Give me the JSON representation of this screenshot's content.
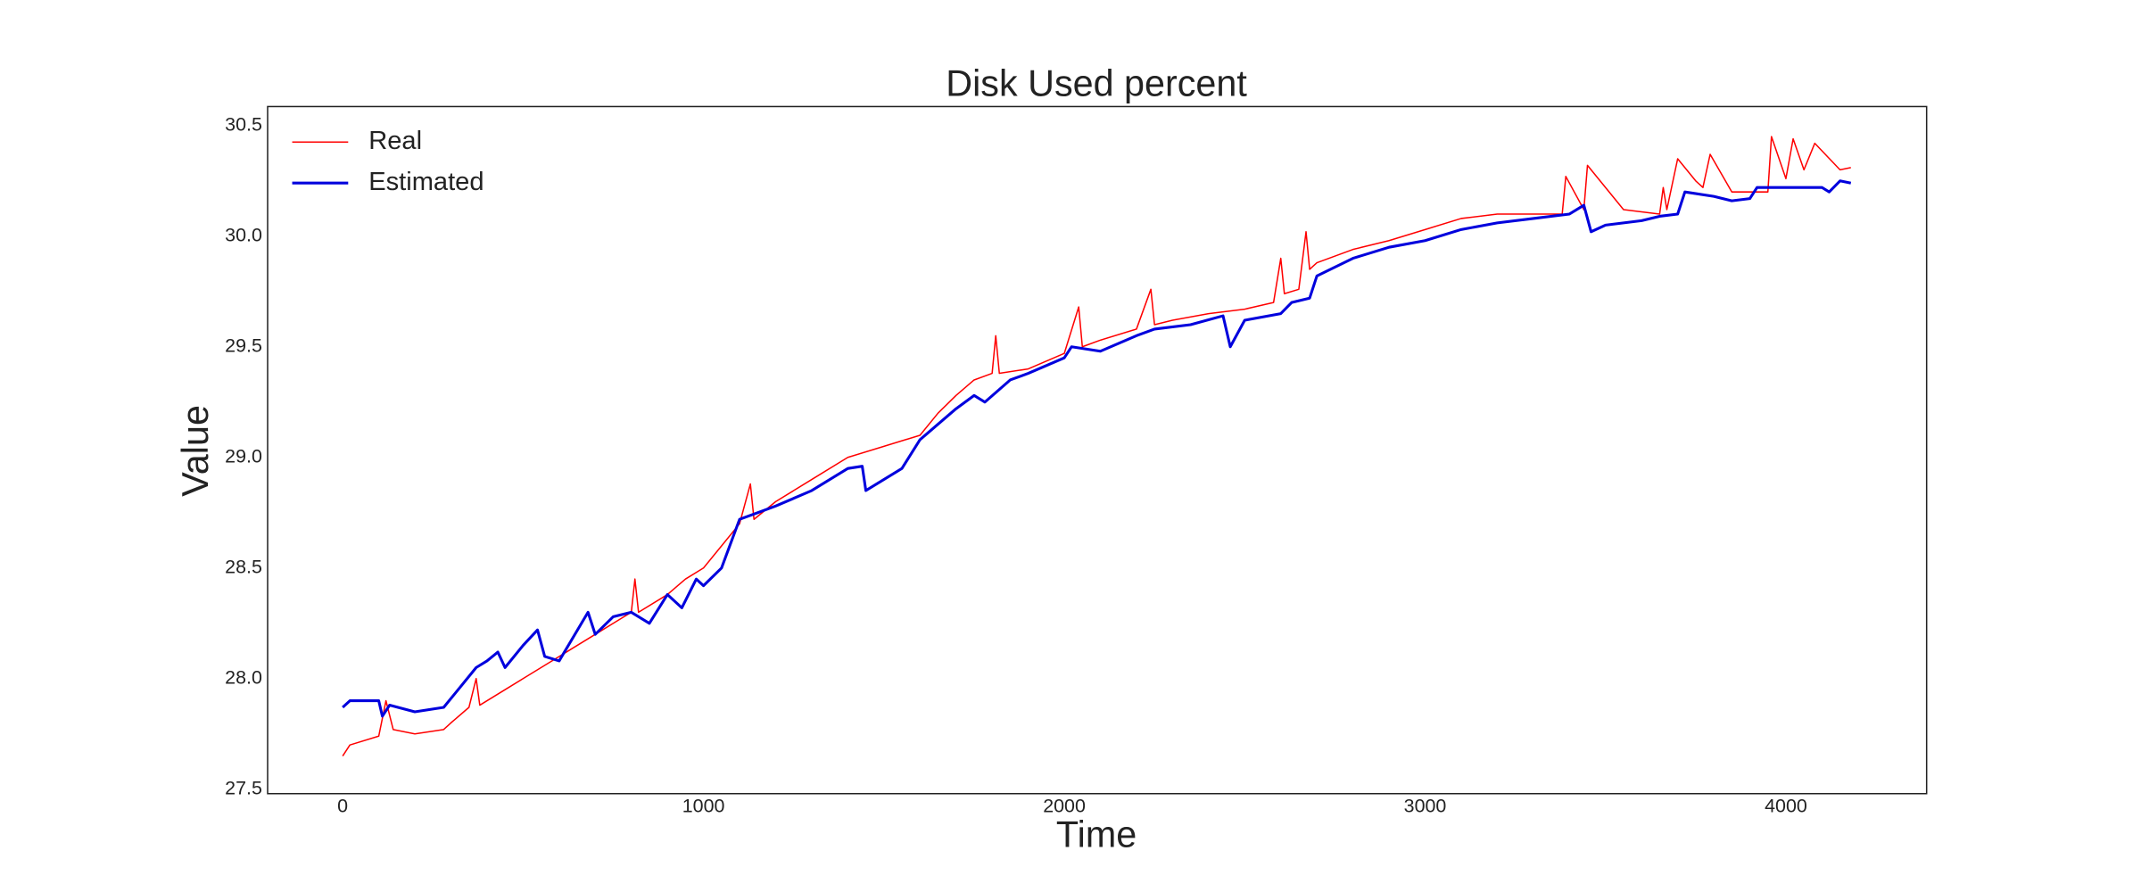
{
  "chart_data": {
    "type": "line",
    "title": "Disk Used percent",
    "x_label": "Time",
    "y_label": "Value",
    "legend": "upper left",
    "grid": false,
    "xlim": [
      -208,
      4390
    ],
    "ylim": [
      27.48,
      30.586
    ],
    "xticks": [
      0,
      1000,
      2000,
      3000,
      4000
    ],
    "yticks": [
      27.5,
      {
        "value": 28,
        "label": "28.0"
      },
      28.5,
      {
        "value": 29,
        "label": "29.0"
      },
      29.5,
      {
        "value": 30,
        "label": "30.0"
      },
      30.5
    ],
    "series": [
      {
        "name": "Real",
        "color": "#ff0000",
        "width": 1,
        "x": [
          0,
          20,
          100,
          120,
          140,
          200,
          280,
          300,
          350,
          370,
          380,
          450,
          500,
          550,
          600,
          650,
          700,
          750,
          800,
          810,
          820,
          900,
          950,
          1000,
          1050,
          1100,
          1130,
          1140,
          1200,
          1300,
          1400,
          1500,
          1600,
          1650,
          1700,
          1750,
          1800,
          1810,
          1820,
          1900,
          2000,
          2040,
          2050,
          2100,
          2200,
          2240,
          2250,
          2300,
          2400,
          2500,
          2580,
          2600,
          2610,
          2650,
          2670,
          2680,
          2700,
          2800,
          2900,
          3000,
          3100,
          3200,
          3300,
          3380,
          3390,
          3440,
          3450,
          3550,
          3650,
          3660,
          3670,
          3700,
          3750,
          3770,
          3790,
          3850,
          3950,
          3960,
          4000,
          4020,
          4050,
          4080,
          4150,
          4180
        ],
        "values": [
          27.65,
          27.7,
          27.74,
          27.9,
          27.77,
          27.75,
          27.77,
          27.8,
          27.87,
          28.0,
          27.88,
          27.95,
          28.0,
          28.05,
          28.1,
          28.15,
          28.2,
          28.25,
          28.3,
          28.45,
          28.3,
          28.38,
          28.45,
          28.5,
          28.6,
          28.7,
          28.88,
          28.72,
          28.8,
          28.9,
          29.0,
          29.05,
          29.1,
          29.2,
          29.28,
          29.35,
          29.38,
          29.55,
          29.38,
          29.4,
          29.47,
          29.68,
          29.5,
          29.53,
          29.58,
          29.76,
          29.6,
          29.62,
          29.65,
          29.67,
          29.7,
          29.9,
          29.74,
          29.76,
          30.02,
          29.85,
          29.88,
          29.94,
          29.98,
          30.03,
          30.08,
          30.1,
          30.1,
          30.1,
          30.27,
          30.12,
          30.32,
          30.12,
          30.1,
          30.22,
          30.12,
          30.35,
          30.25,
          30.22,
          30.37,
          30.2,
          30.2,
          30.45,
          30.26,
          30.44,
          30.3,
          30.42,
          30.3,
          30.31
        ]
      },
      {
        "name": "Estimated",
        "color": "#0000dd",
        "width": 2,
        "x": [
          0,
          20,
          100,
          110,
          130,
          200,
          280,
          320,
          370,
          400,
          430,
          450,
          500,
          540,
          560,
          600,
          680,
          700,
          750,
          800,
          850,
          900,
          940,
          980,
          1000,
          1050,
          1100,
          1150,
          1200,
          1300,
          1400,
          1440,
          1450,
          1500,
          1550,
          1600,
          1650,
          1700,
          1750,
          1780,
          1850,
          1900,
          2000,
          2020,
          2100,
          2200,
          2250,
          2350,
          2440,
          2460,
          2500,
          2600,
          2630,
          2680,
          2700,
          2800,
          2900,
          3000,
          3100,
          3200,
          3300,
          3400,
          3440,
          3460,
          3500,
          3600,
          3650,
          3700,
          3720,
          3800,
          3850,
          3900,
          3920,
          4000,
          4100,
          4120,
          4150,
          4180
        ],
        "values": [
          27.87,
          27.9,
          27.9,
          27.83,
          27.88,
          27.85,
          27.87,
          27.95,
          28.05,
          28.08,
          28.12,
          28.05,
          28.15,
          28.22,
          28.1,
          28.08,
          28.3,
          28.2,
          28.28,
          28.3,
          28.25,
          28.38,
          28.32,
          28.45,
          28.42,
          28.5,
          28.72,
          28.75,
          28.78,
          28.85,
          28.95,
          28.96,
          28.85,
          28.9,
          28.95,
          29.08,
          29.15,
          29.22,
          29.28,
          29.25,
          29.35,
          29.38,
          29.45,
          29.5,
          29.48,
          29.55,
          29.58,
          29.6,
          29.64,
          29.5,
          29.62,
          29.65,
          29.7,
          29.72,
          29.82,
          29.9,
          29.95,
          29.98,
          30.03,
          30.06,
          30.08,
          30.1,
          30.14,
          30.02,
          30.05,
          30.07,
          30.09,
          30.1,
          30.2,
          30.18,
          30.16,
          30.17,
          30.22,
          30.22,
          30.22,
          30.2,
          30.25,
          30.24
        ]
      }
    ]
  }
}
